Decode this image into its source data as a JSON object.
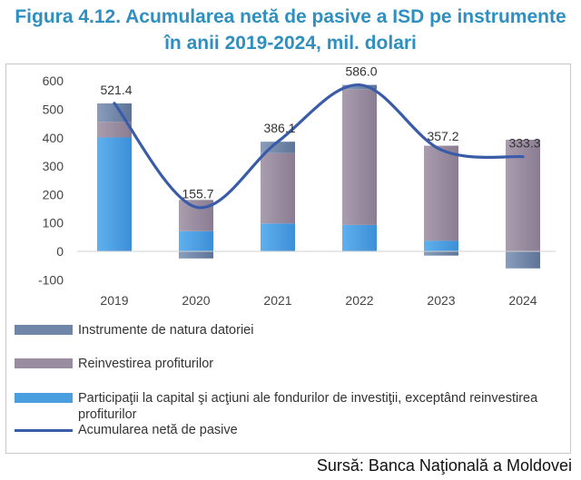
{
  "title_line1": "Figura  4.12. Acumularea netă de pasive a ISD pe instrumente",
  "title_line2": "în anii 2019-2024,  mil. dolari",
  "source": "Sursă: Banca Naţională a Moldovei",
  "colors": {
    "debt": "#6f86a8",
    "reinvest": "#9a8ca0",
    "equity": "#4a9fe0",
    "line": "#3a5ca8"
  },
  "chart_data": {
    "type": "bar",
    "categories": [
      "2019",
      "2020",
      "2021",
      "2022",
      "2023",
      "2024"
    ],
    "series": [
      {
        "name": "Instrumente de natura datoriei",
        "type": "stacked-bar",
        "values": [
          65,
          -25,
          40,
          15,
          -15,
          -60
        ]
      },
      {
        "name": "Reinvestirea profiturilor",
        "type": "stacked-bar",
        "values": [
          55,
          110,
          248,
          478,
          335,
          393
        ]
      },
      {
        "name": "Participaţii la capital şi acţiuni ale fondurilor de investiţii, exceptând reinvestirea profiturilor",
        "type": "stacked-bar",
        "values": [
          401,
          71,
          98,
          93,
          37,
          0
        ]
      },
      {
        "name": "Acumularea netă de pasive",
        "type": "line",
        "values": [
          521.4,
          155.7,
          386.1,
          586.0,
          357.2,
          333.3
        ]
      }
    ],
    "data_labels": [
      "521.4",
      "155.7",
      "386.1",
      "586.0",
      "357.2",
      "333.3"
    ],
    "y_ticks": [
      "600",
      "500",
      "400",
      "300",
      "200",
      "100",
      "0",
      "-100"
    ],
    "ylim": [
      -100,
      600
    ],
    "grid": false,
    "legend_position": "bottom"
  },
  "legend": [
    {
      "label": "Instrumente de natura datoriei",
      "kind": "bar",
      "color": "#6f86a8"
    },
    {
      "label": "Reinvestirea profiturilor",
      "kind": "bar",
      "color": "#9a8ca0"
    },
    {
      "label": "Participaţii la capital şi acţiuni ale fondurilor de investiţii, exceptând reinvestirea profiturilor",
      "kind": "bar",
      "color": "#4a9fe0"
    },
    {
      "label": "Acumularea netă de pasive",
      "kind": "line",
      "color": "#3a5ca8"
    }
  ]
}
